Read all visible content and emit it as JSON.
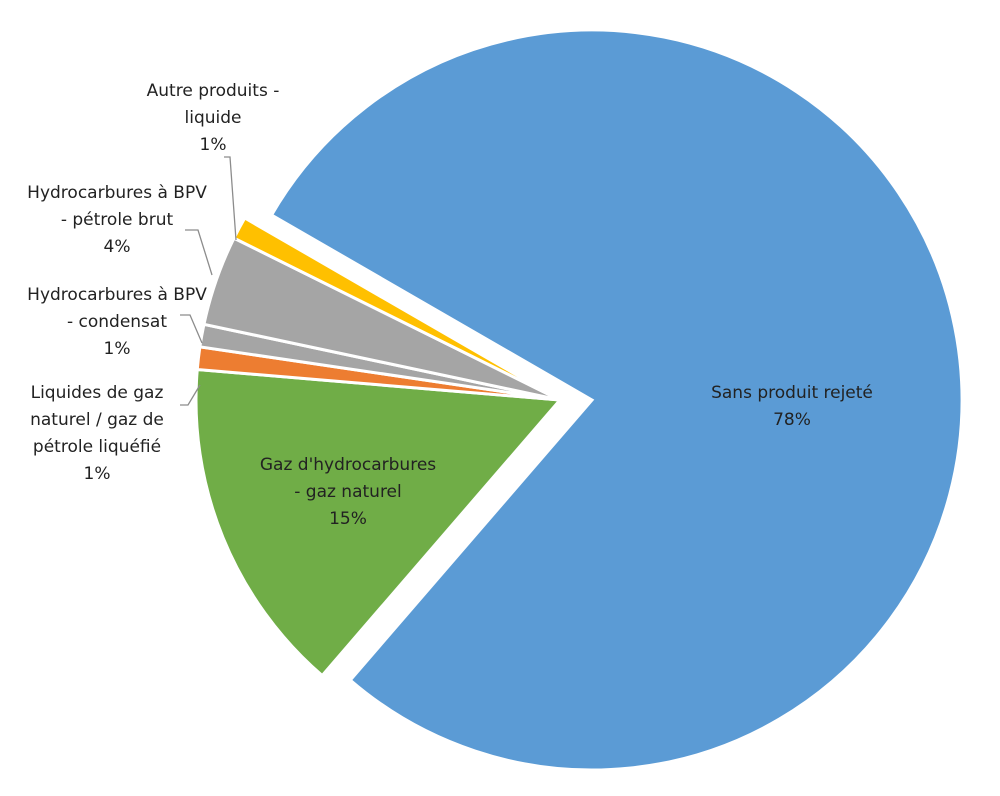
{
  "chart_data": {
    "type": "pie",
    "title": "",
    "start_angle_deg": 300,
    "slices": [
      {
        "label_lines": [
          "Sans produit rejeté"
        ],
        "pct_label": "78%",
        "value": 78,
        "color": "#5B9BD5",
        "exploded": true
      },
      {
        "label_lines": [
          "Gaz d'hydrocarbures",
          "- gaz naturel"
        ],
        "pct_label": "15%",
        "value": 15,
        "color": "#70AD47",
        "exploded": false
      },
      {
        "label_lines": [
          "Liquides de gaz",
          "naturel / gaz de",
          "pétrole liquéfié"
        ],
        "pct_label": "1%",
        "value": 1,
        "color": "#ED7D31",
        "exploded": false
      },
      {
        "label_lines": [
          "Hydrocarbures à BPV",
          "- condensat"
        ],
        "pct_label": "1%",
        "value": 1,
        "color": "#A5A5A5",
        "exploded": false
      },
      {
        "label_lines": [
          "Hydrocarbures à BPV",
          "- pétrole brut"
        ],
        "pct_label": "4%",
        "value": 4,
        "color": "#A5A5A5",
        "exploded": false
      },
      {
        "label_lines": [
          "Autre produits -",
          "liquide"
        ],
        "pct_label": "1%",
        "value": 1,
        "color": "#FFC000",
        "exploded": false
      }
    ]
  }
}
